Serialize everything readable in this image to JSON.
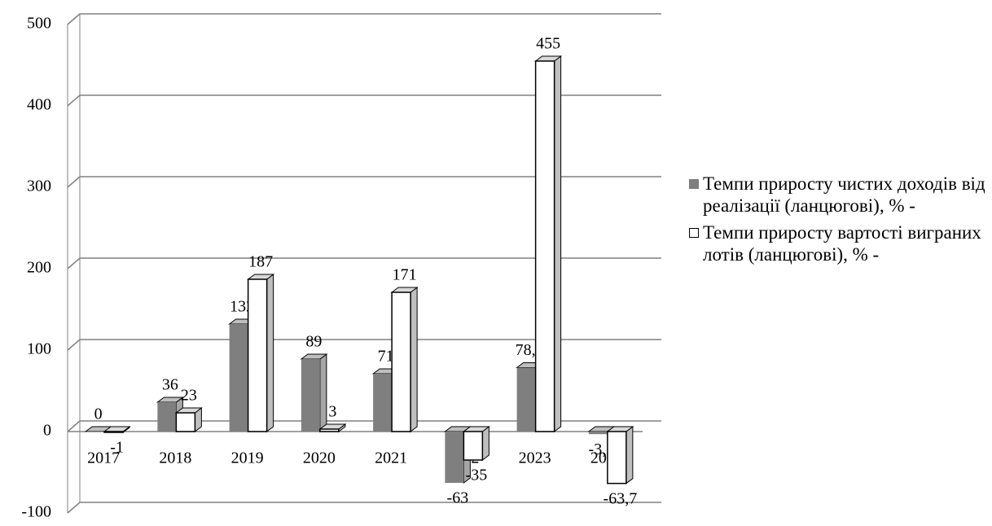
{
  "chart_data": {
    "type": "bar3d",
    "categories": [
      "2017",
      "2018",
      "2019",
      "2020",
      "2021",
      "2022",
      "2023",
      "2024"
    ],
    "series": [
      {
        "name": "Темпи приросту чистих доходів від реалізації (ланцюгові), % -",
        "color": "#7f7f7f",
        "values": [
          0,
          36,
          132,
          89,
          71,
          -63,
          78.5,
          -3.2
        ],
        "value_labels": [
          "0",
          "36",
          "132",
          "89",
          "71",
          "-63",
          "78,5",
          "-3,2"
        ]
      },
      {
        "name": "Темпи приросту вартості виграних лотів (ланцюгові), % -",
        "color": "#ffffff",
        "values": [
          -1,
          23,
          187,
          3,
          171,
          -35,
          455,
          -63.7
        ],
        "value_labels": [
          "-1",
          "23",
          "187",
          "3",
          "171",
          "-35",
          "455",
          "-63,7"
        ]
      }
    ],
    "ylim": [
      -100,
      500
    ],
    "yticks": [
      -100,
      0,
      100,
      200,
      300,
      400,
      500
    ],
    "grid": true,
    "legend": "right"
  }
}
